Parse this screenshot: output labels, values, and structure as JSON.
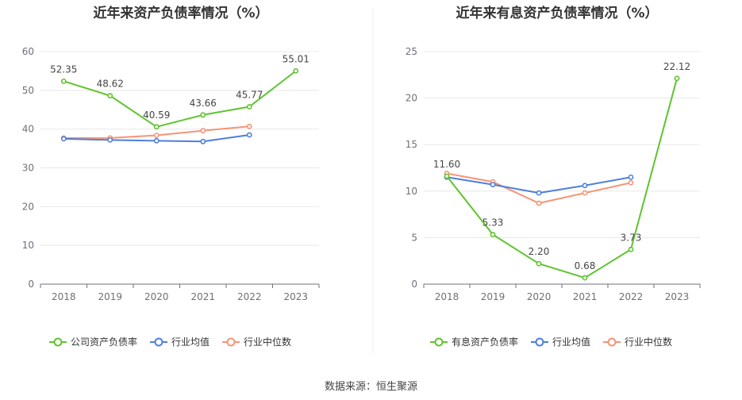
{
  "colors": {
    "company": "#5ec42e",
    "avg": "#4f7fdc",
    "median": "#f59476",
    "grid": "#e8e8e8",
    "axis": "#6e7079",
    "divider": "#eeeeee"
  },
  "chart_data": [
    {
      "type": "line",
      "title": "近年来资产负债率情况（%）",
      "categories": [
        "2018",
        "2019",
        "2020",
        "2021",
        "2022",
        "2023"
      ],
      "ylim": [
        0,
        60
      ],
      "yticks": [
        0,
        10,
        20,
        30,
        40,
        50,
        60
      ],
      "series": [
        {
          "name": "公司资产负债率",
          "color_key": "company",
          "values": [
            52.35,
            48.62,
            40.59,
            43.66,
            45.77,
            55.01
          ],
          "labels": [
            "52.35",
            "48.62",
            "40.59",
            "43.66",
            "45.77",
            "55.01"
          ]
        },
        {
          "name": "行业均值",
          "color_key": "avg",
          "values": [
            37.5,
            37.2,
            37.0,
            36.8,
            38.5,
            null
          ]
        },
        {
          "name": "行业中位数",
          "color_key": "median",
          "values": [
            37.7,
            37.7,
            38.4,
            39.6,
            40.7,
            null
          ]
        }
      ],
      "xlabel": "",
      "ylabel": "",
      "legend": "bottom"
    },
    {
      "type": "line",
      "title": "近年来有息资产负债率情况（%）",
      "categories": [
        "2018",
        "2019",
        "2020",
        "2021",
        "2022",
        "2023"
      ],
      "ylim": [
        0,
        25
      ],
      "yticks": [
        0,
        5,
        10,
        15,
        20,
        25
      ],
      "series": [
        {
          "name": "有息资产负债率",
          "color_key": "company",
          "values": [
            11.6,
            5.33,
            2.2,
            0.68,
            3.73,
            22.12
          ],
          "labels": [
            "11.60",
            "5.33",
            "2.20",
            "0.68",
            "3.73",
            "22.12"
          ]
        },
        {
          "name": "行业均值",
          "color_key": "avg",
          "values": [
            11.5,
            10.7,
            9.8,
            10.6,
            11.5,
            null
          ]
        },
        {
          "name": "行业中位数",
          "color_key": "median",
          "values": [
            11.9,
            11.0,
            8.7,
            9.8,
            10.9,
            null
          ]
        }
      ],
      "xlabel": "",
      "ylabel": "",
      "legend": "bottom"
    }
  ],
  "source": "数据来源：恒生聚源"
}
